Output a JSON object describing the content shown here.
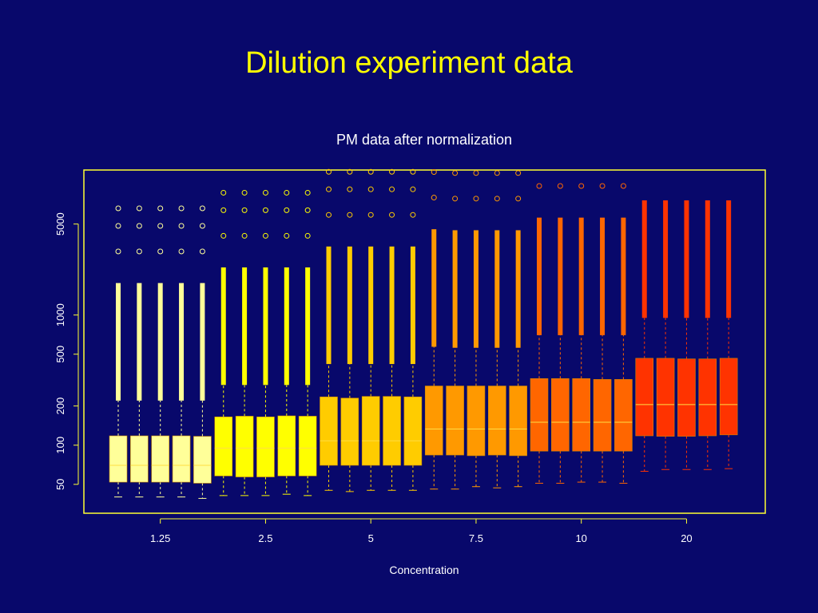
{
  "slide": {
    "title": "Dilution experiment data"
  },
  "chart_data": {
    "type": "box",
    "title": "PM data after normalization",
    "xlabel": "Concentration",
    "ylabel": "",
    "y_scale": "log",
    "ylim": [
      30,
      13000
    ],
    "y_ticks": [
      50,
      100,
      200,
      500,
      1000,
      5000
    ],
    "x_tick_labels": [
      "1.25",
      "2.5",
      "5",
      "7.5",
      "10",
      "20"
    ],
    "groups": [
      {
        "label": "1.25",
        "color": "#ffff99",
        "boxes": [
          {
            "min": 40,
            "q1": 52,
            "median": 70,
            "q3": 118,
            "max": 220
          },
          {
            "min": 40,
            "q1": 52,
            "median": 70,
            "q3": 118,
            "max": 220
          },
          {
            "min": 40,
            "q1": 52,
            "median": 70,
            "q3": 118,
            "max": 220
          },
          {
            "min": 40,
            "q1": 52,
            "median": 70,
            "q3": 118,
            "max": 220
          },
          {
            "min": 39,
            "q1": 51,
            "median": 70,
            "q3": 117,
            "max": 220
          }
        ]
      },
      {
        "label": "2.5",
        "color": "#ffff00",
        "boxes": [
          {
            "min": 41,
            "q1": 58,
            "median": 95,
            "q3": 165,
            "max": 290
          },
          {
            "min": 41,
            "q1": 57,
            "median": 95,
            "q3": 167,
            "max": 290
          },
          {
            "min": 41,
            "q1": 57,
            "median": 95,
            "q3": 165,
            "max": 290
          },
          {
            "min": 42,
            "q1": 58,
            "median": 95,
            "q3": 168,
            "max": 290
          },
          {
            "min": 41,
            "q1": 58,
            "median": 95,
            "q3": 167,
            "max": 290
          }
        ]
      },
      {
        "label": "5",
        "color": "#ffcc00",
        "boxes": [
          {
            "min": 45,
            "q1": 70,
            "median": 108,
            "q3": 235,
            "max": 420
          },
          {
            "min": 44,
            "q1": 70,
            "median": 108,
            "q3": 230,
            "max": 420
          },
          {
            "min": 45,
            "q1": 70,
            "median": 108,
            "q3": 237,
            "max": 420
          },
          {
            "min": 45,
            "q1": 70,
            "median": 108,
            "q3": 237,
            "max": 420
          },
          {
            "min": 45,
            "q1": 70,
            "median": 108,
            "q3": 235,
            "max": 420
          }
        ]
      },
      {
        "label": "7.5",
        "color": "#ff9900",
        "boxes": [
          {
            "min": 46,
            "q1": 84,
            "median": 133,
            "q3": 285,
            "max": 570
          },
          {
            "min": 46,
            "q1": 84,
            "median": 133,
            "q3": 285,
            "max": 560
          },
          {
            "min": 48,
            "q1": 83,
            "median": 133,
            "q3": 285,
            "max": 560
          },
          {
            "min": 47,
            "q1": 84,
            "median": 133,
            "q3": 285,
            "max": 560
          },
          {
            "min": 48,
            "q1": 83,
            "median": 133,
            "q3": 285,
            "max": 560
          }
        ]
      },
      {
        "label": "10",
        "color": "#ff6600",
        "boxes": [
          {
            "min": 51,
            "q1": 90,
            "median": 150,
            "q3": 325,
            "max": 700
          },
          {
            "min": 51,
            "q1": 90,
            "median": 150,
            "q3": 325,
            "max": 700
          },
          {
            "min": 52,
            "q1": 90,
            "median": 150,
            "q3": 325,
            "max": 700
          },
          {
            "min": 52,
            "q1": 90,
            "median": 150,
            "q3": 320,
            "max": 700
          },
          {
            "min": 51,
            "q1": 90,
            "median": 150,
            "q3": 320,
            "max": 700
          }
        ]
      },
      {
        "label": "20",
        "color": "#ff3300",
        "boxes": [
          {
            "min": 63,
            "q1": 118,
            "median": 205,
            "q3": 465,
            "max": 950
          },
          {
            "min": 65,
            "q1": 117,
            "median": 205,
            "q3": 465,
            "max": 950
          },
          {
            "min": 65,
            "q1": 117,
            "median": 205,
            "q3": 460,
            "max": 950
          },
          {
            "min": 65,
            "q1": 118,
            "median": 205,
            "q3": 460,
            "max": 950
          },
          {
            "min": 66,
            "q1": 120,
            "median": 205,
            "q3": 465,
            "max": 950
          }
        ]
      }
    ]
  }
}
